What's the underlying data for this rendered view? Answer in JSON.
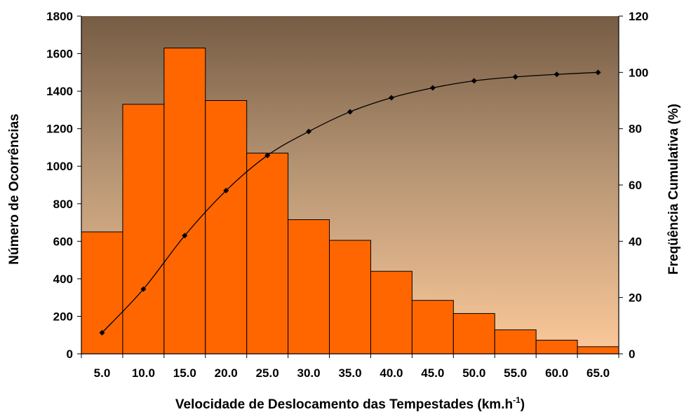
{
  "chart_data": {
    "type": "bar",
    "title": "",
    "xlabel": "Velocidade de Deslocamento das Tempestades (km.h",
    "xlabel_sup": "-1",
    "xlabel_suffix": ")",
    "ylabel": "Número de Ocorrências",
    "y2label": "Freqüência Cumulativa (%)",
    "categories": [
      "5.0",
      "10.0",
      "15.0",
      "20.0",
      "25.0",
      "30.0",
      "35.0",
      "40.0",
      "45.0",
      "50.0",
      "55.0",
      "60.0",
      "65.0"
    ],
    "series": [
      {
        "type": "bar",
        "axis": "left",
        "values": [
          650,
          1330,
          1630,
          1350,
          1070,
          715,
          605,
          440,
          285,
          215,
          128,
          73,
          38
        ]
      },
      {
        "type": "line",
        "axis": "right",
        "marker": "diamond",
        "values": [
          7.5,
          23,
          42,
          58,
          70.5,
          79,
          86,
          91,
          94.5,
          97,
          98.4,
          99.3,
          100
        ]
      }
    ],
    "ylim": [
      0,
      1800
    ],
    "yticks": [
      0,
      200,
      400,
      600,
      800,
      1000,
      1200,
      1400,
      1600,
      1800
    ],
    "y2lim": [
      0,
      120
    ],
    "y2ticks": [
      0,
      20,
      40,
      60,
      80,
      100,
      120
    ],
    "grid": false,
    "legend": "none",
    "colors": {
      "bar_fill": "#ff6600",
      "bar_stroke": "#000000",
      "line": "#000000",
      "plot_bg_top": "#765c44",
      "plot_bg_mid": "#b59473",
      "plot_bg_bottom": "#fcc99a"
    }
  }
}
